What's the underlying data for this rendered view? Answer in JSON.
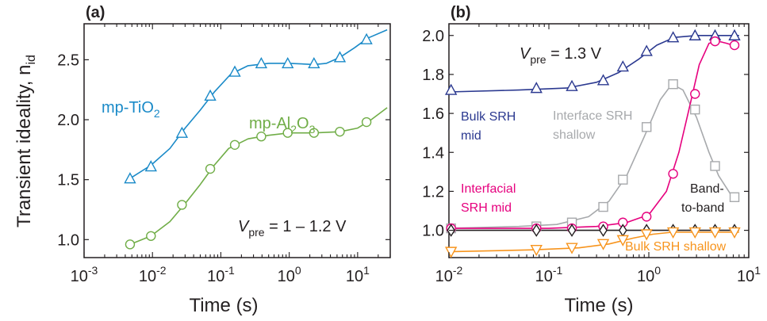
{
  "chart_data": [
    {
      "type": "line",
      "panel_label": "(a)",
      "xlabel": "Time (s)",
      "ylabel": "Transient ideality, n",
      "ylabel_sub": "id",
      "xscale": "log",
      "xlim": [
        0.001,
        30
      ],
      "ylim": [
        0.85,
        2.8
      ],
      "xticks": [
        {
          "value": 0.001,
          "base": "10",
          "exp": "-3"
        },
        {
          "value": 0.01,
          "base": "10",
          "exp": "-2"
        },
        {
          "value": 0.1,
          "base": "10",
          "exp": "-1"
        },
        {
          "value": 1,
          "base": "10",
          "exp": "0"
        },
        {
          "value": 10,
          "base": "10",
          "exp": "1"
        }
      ],
      "yticks": [
        "1.0",
        "1.5",
        "2.0",
        "2.5"
      ],
      "ytick_values": [
        1.0,
        1.5,
        2.0,
        2.5
      ],
      "annotation": {
        "main": "V",
        "sub": "pre",
        "rest": " = 1 – 1.2 V"
      },
      "series": [
        {
          "name": "mp-TiO2",
          "label_parts": {
            "main": "mp-TiO",
            "sub": "2"
          },
          "color": "#1a8ac8",
          "marker": "triangle",
          "points": [
            [
              0.0047,
              1.51
            ],
            [
              0.0095,
              1.61
            ],
            [
              0.027,
              1.89
            ],
            [
              0.07,
              2.2
            ],
            [
              0.16,
              2.4
            ],
            [
              0.39,
              2.47
            ],
            [
              0.95,
              2.47
            ],
            [
              2.3,
              2.47
            ],
            [
              5.5,
              2.52
            ],
            [
              13.5,
              2.67
            ]
          ],
          "line": [
            [
              0.0047,
              1.51
            ],
            [
              0.0095,
              1.62
            ],
            [
              0.018,
              1.76
            ],
            [
              0.03,
              1.93
            ],
            [
              0.05,
              2.08
            ],
            [
              0.08,
              2.23
            ],
            [
              0.14,
              2.38
            ],
            [
              0.25,
              2.45
            ],
            [
              0.5,
              2.47
            ],
            [
              1.0,
              2.47
            ],
            [
              2.3,
              2.46
            ],
            [
              3.5,
              2.47
            ],
            [
              5.5,
              2.52
            ],
            [
              9,
              2.6
            ],
            [
              14,
              2.68
            ],
            [
              27,
              2.75
            ]
          ]
        },
        {
          "name": "mp-Al2O3",
          "label_parts": {
            "main": "mp-Al",
            "sub": "2",
            "main2": "O",
            "sub2": "3"
          },
          "color": "#70ad47",
          "marker": "circle",
          "points": [
            [
              0.0047,
              0.96
            ],
            [
              0.0095,
              1.03
            ],
            [
              0.027,
              1.29
            ],
            [
              0.07,
              1.59
            ],
            [
              0.16,
              1.79
            ],
            [
              0.39,
              1.86
            ],
            [
              0.95,
              1.89
            ],
            [
              2.3,
              1.89
            ],
            [
              5.5,
              1.9
            ],
            [
              13.5,
              1.98
            ]
          ],
          "line": [
            [
              0.0047,
              0.96
            ],
            [
              0.0095,
              1.03
            ],
            [
              0.018,
              1.15
            ],
            [
              0.03,
              1.3
            ],
            [
              0.05,
              1.46
            ],
            [
              0.08,
              1.62
            ],
            [
              0.13,
              1.76
            ],
            [
              0.25,
              1.84
            ],
            [
              0.5,
              1.87
            ],
            [
              1.0,
              1.89
            ],
            [
              2.3,
              1.89
            ],
            [
              5.5,
              1.9
            ],
            [
              10,
              1.93
            ],
            [
              15,
              1.99
            ],
            [
              27,
              2.1
            ]
          ]
        }
      ]
    },
    {
      "type": "line",
      "panel_label": "(b)",
      "xlabel": "Time (s)",
      "xscale": "log",
      "xlim": [
        0.01,
        10
      ],
      "ylim": [
        0.86,
        2.06
      ],
      "xticks": [
        {
          "value": 0.01,
          "base": "10",
          "exp": "-2"
        },
        {
          "value": 0.1,
          "base": "10",
          "exp": "-1"
        },
        {
          "value": 1,
          "base": "10",
          "exp": "0"
        },
        {
          "value": 10,
          "base": "10",
          "exp": "1"
        }
      ],
      "yticks": [
        "1.0",
        "1.2",
        "1.4",
        "1.6",
        "1.8",
        "2.0"
      ],
      "ytick_values": [
        1.0,
        1.2,
        1.4,
        1.6,
        1.8,
        2.0
      ],
      "annotation": {
        "main": "V",
        "sub": "pre",
        "rest": " = 1.3 V"
      },
      "series": [
        {
          "name": "Bulk SRH mid",
          "label_lines": [
            "Bulk SRH",
            "mid"
          ],
          "color": "#2b3990",
          "marker": "triangle",
          "points": [
            [
              0.0105,
              1.72
            ],
            [
              0.075,
              1.73
            ],
            [
              0.17,
              1.74
            ],
            [
              0.35,
              1.77
            ],
            [
              0.55,
              1.84
            ],
            [
              0.95,
              1.92
            ],
            [
              1.75,
              1.99
            ],
            [
              2.9,
              2.0
            ],
            [
              4.6,
              2.0
            ],
            [
              7.2,
              2.0
            ]
          ],
          "line": [
            [
              0.01,
              1.71
            ],
            [
              0.05,
              1.72
            ],
            [
              0.15,
              1.73
            ],
            [
              0.3,
              1.76
            ],
            [
              0.5,
              1.81
            ],
            [
              0.8,
              1.88
            ],
            [
              1.2,
              1.95
            ],
            [
              1.8,
              1.99
            ],
            [
              3,
              2.0
            ],
            [
              8,
              2.0
            ]
          ]
        },
        {
          "name": "Interface SRH shallow",
          "label_lines": [
            "Interface SRH",
            "shallow"
          ],
          "color": "#a7a9ac",
          "marker": "square",
          "points": [
            [
              0.0105,
              1.01
            ],
            [
              0.075,
              1.02
            ],
            [
              0.17,
              1.04
            ],
            [
              0.35,
              1.12
            ],
            [
              0.55,
              1.26
            ],
            [
              0.95,
              1.53
            ],
            [
              1.75,
              1.75
            ],
            [
              2.9,
              1.62
            ],
            [
              4.6,
              1.33
            ],
            [
              7.2,
              1.17
            ]
          ],
          "line": [
            [
              0.01,
              1.01
            ],
            [
              0.05,
              1.02
            ],
            [
              0.12,
              1.03
            ],
            [
              0.25,
              1.07
            ],
            [
              0.4,
              1.15
            ],
            [
              0.6,
              1.28
            ],
            [
              0.9,
              1.48
            ],
            [
              1.3,
              1.67
            ],
            [
              1.7,
              1.75
            ],
            [
              2.2,
              1.72
            ],
            [
              3,
              1.58
            ],
            [
              4,
              1.4
            ],
            [
              5,
              1.28
            ],
            [
              6.5,
              1.19
            ],
            [
              8,
              1.15
            ]
          ]
        },
        {
          "name": "Interfacial SRH mid",
          "label_lines": [
            "Interfacial",
            "SRH mid"
          ],
          "color": "#e6007e",
          "marker": "circle",
          "points": [
            [
              0.0105,
              1.01
            ],
            [
              0.075,
              1.01
            ],
            [
              0.17,
              1.01
            ],
            [
              0.35,
              1.02
            ],
            [
              0.55,
              1.04
            ],
            [
              0.95,
              1.07
            ],
            [
              1.75,
              1.29
            ],
            [
              2.9,
              1.7
            ],
            [
              4.6,
              1.97
            ],
            [
              7.2,
              1.95
            ]
          ],
          "line": [
            [
              0.01,
              1.01
            ],
            [
              0.1,
              1.01
            ],
            [
              0.3,
              1.02
            ],
            [
              0.6,
              1.04
            ],
            [
              1.0,
              1.08
            ],
            [
              1.5,
              1.2
            ],
            [
              2,
              1.4
            ],
            [
              2.6,
              1.65
            ],
            [
              3.2,
              1.85
            ],
            [
              4,
              1.96
            ],
            [
              5,
              1.97
            ],
            [
              6,
              1.96
            ],
            [
              8,
              1.94
            ]
          ]
        },
        {
          "name": "Band-to-band",
          "label_lines": [
            "Band-",
            "to-band"
          ],
          "color": "#231f20",
          "marker": "diamond",
          "points": [
            [
              0.0105,
              1.0
            ],
            [
              0.075,
              1.0
            ],
            [
              0.17,
              1.0
            ],
            [
              0.35,
              1.0
            ],
            [
              0.55,
              1.0
            ],
            [
              0.95,
              1.0
            ],
            [
              1.75,
              1.0
            ],
            [
              2.9,
              1.0
            ],
            [
              4.6,
              1.0
            ],
            [
              7.2,
              1.0
            ]
          ],
          "line": [
            [
              0.01,
              1.0
            ],
            [
              8,
              1.0
            ]
          ]
        },
        {
          "name": "Bulk SRH shallow",
          "label_lines": [
            "Bulk SRH shallow"
          ],
          "color": "#f7941d",
          "marker": "triangle-down",
          "points": [
            [
              0.0105,
              0.89
            ],
            [
              0.075,
              0.9
            ],
            [
              0.17,
              0.91
            ],
            [
              0.35,
              0.93
            ],
            [
              0.55,
              0.95
            ],
            [
              0.95,
              0.98
            ],
            [
              1.75,
              0.99
            ],
            [
              2.9,
              0.99
            ],
            [
              4.6,
              0.99
            ],
            [
              7.2,
              0.99
            ]
          ],
          "line": [
            [
              0.01,
              0.89
            ],
            [
              0.07,
              0.9
            ],
            [
              0.2,
              0.91
            ],
            [
              0.4,
              0.93
            ],
            [
              0.7,
              0.96
            ],
            [
              1.1,
              0.98
            ],
            [
              1.7,
              0.99
            ],
            [
              3,
              0.99
            ],
            [
              8,
              0.99
            ]
          ]
        }
      ]
    }
  ]
}
